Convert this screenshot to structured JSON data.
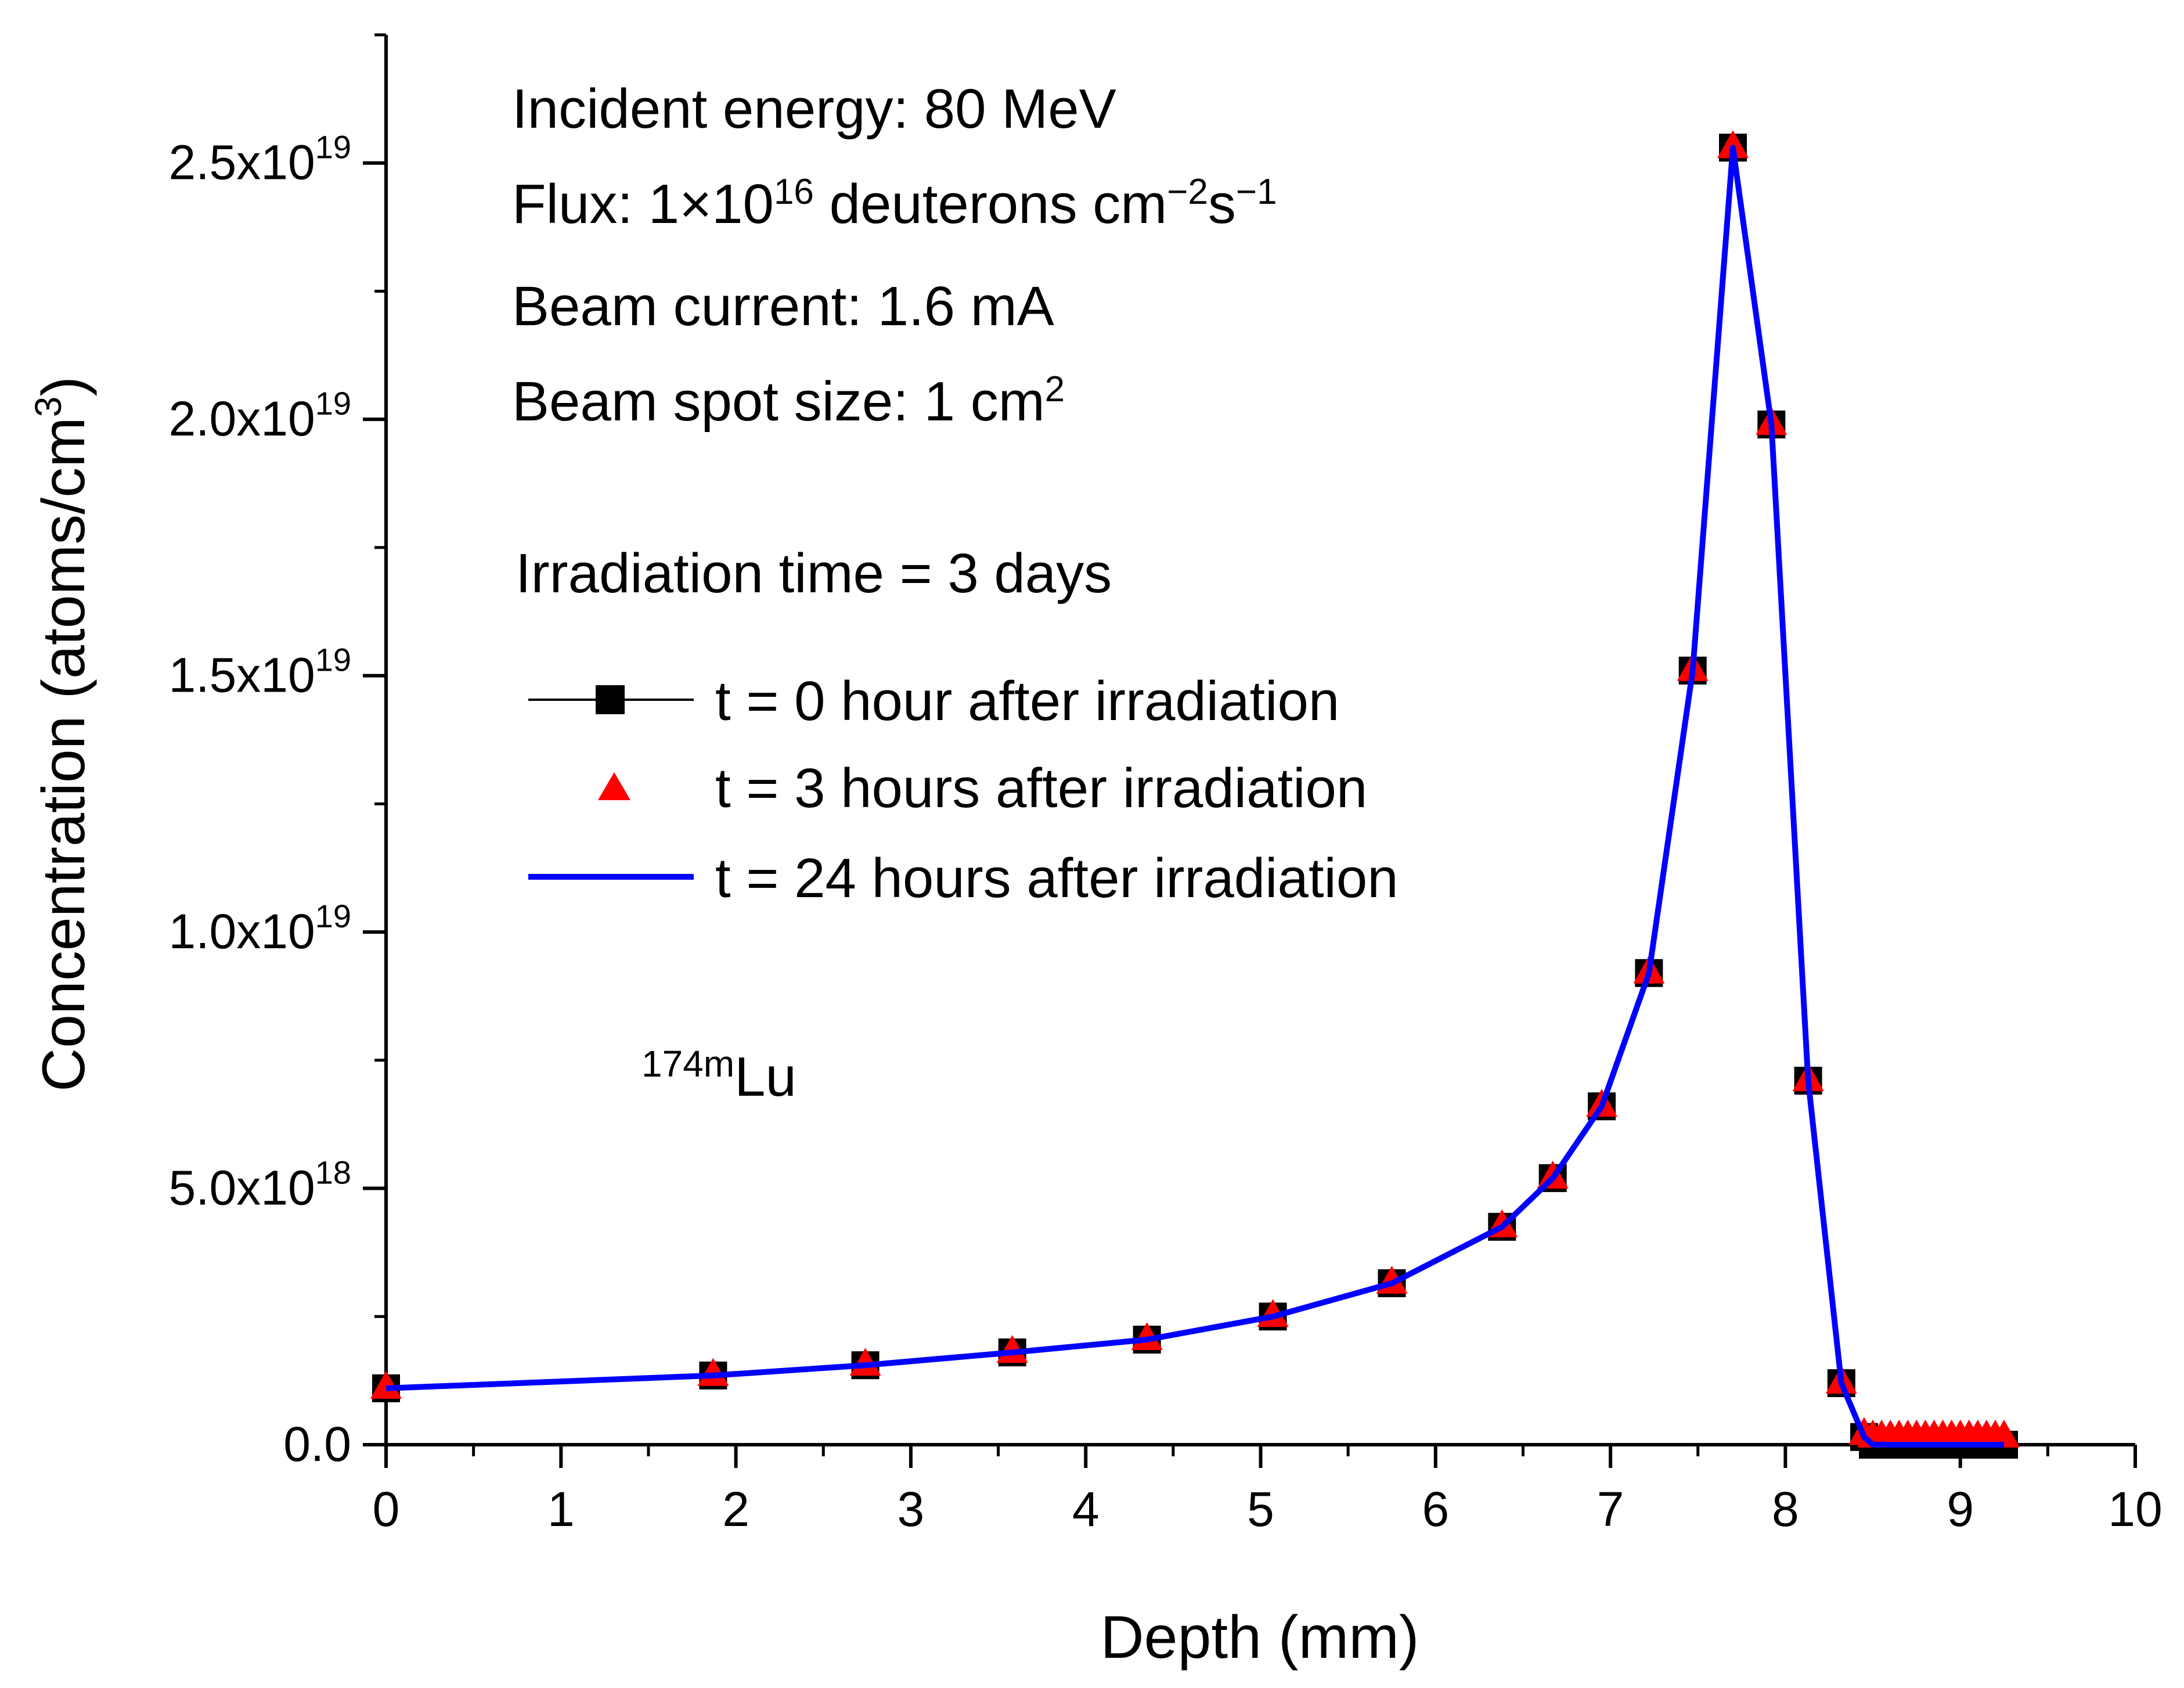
{
  "chart_data": {
    "type": "line",
    "xlabel": "Depth (mm)",
    "ylabel_main": "Concentration (atoms/cm",
    "ylabel_sup": "3",
    "ylabel_close": ")",
    "xlim": [
      0,
      10
    ],
    "ylim": [
      0,
      2.75e+19
    ],
    "x_ticks": [
      {
        "value": 0,
        "label": "0"
      },
      {
        "value": 1,
        "label": "1"
      },
      {
        "value": 2,
        "label": "2"
      },
      {
        "value": 3,
        "label": "3"
      },
      {
        "value": 4,
        "label": "4"
      },
      {
        "value": 5,
        "label": "5"
      },
      {
        "value": 6,
        "label": "6"
      },
      {
        "value": 7,
        "label": "7"
      },
      {
        "value": 8,
        "label": "8"
      },
      {
        "value": 9,
        "label": "9"
      },
      {
        "value": 10,
        "label": "10"
      }
    ],
    "y_ticks": [
      {
        "value": 0,
        "label": "0.0",
        "exp": ""
      },
      {
        "value": 5e+18,
        "label": "5.0x10",
        "exp": "18"
      },
      {
        "value": 1e+19,
        "label": "1.0x10",
        "exp": "19"
      },
      {
        "value": 1.5e+19,
        "label": "1.5x10",
        "exp": "19"
      },
      {
        "value": 2e+19,
        "label": "2.0x10",
        "exp": "19"
      },
      {
        "value": 2.5e+19,
        "label": "2.5x10",
        "exp": "19"
      }
    ],
    "x": [
      0,
      1.87,
      2.74,
      3.58,
      4.35,
      5.07,
      5.75,
      6.38,
      6.67,
      6.95,
      7.22,
      7.47,
      7.7,
      7.92,
      8.13,
      8.32,
      8.45,
      8.5,
      8.55,
      8.6,
      8.65,
      8.7,
      8.75,
      8.8,
      8.85,
      8.9,
      8.95,
      9.0,
      9.05,
      9.1,
      9.15,
      9.2,
      9.25
    ],
    "series": [
      {
        "name": "t = 0 hour after irradiation",
        "marker": "square",
        "line": true,
        "color": "#000000",
        "values": [
          1.1e+18,
          1.35e+18,
          1.55e+18,
          1.8e+18,
          2.05e+18,
          2.5e+18,
          3.15e+18,
          4.25e+18,
          5.2e+18,
          6.6e+18,
          9.2e+18,
          1.51e+19,
          2.53e+19,
          1.99e+19,
          7.1e+18,
          1.2e+18,
          1.5e+17,
          0,
          0,
          0,
          0,
          0,
          0,
          0,
          0,
          0,
          0,
          0,
          0,
          0,
          0,
          0,
          0
        ]
      },
      {
        "name": "t = 3 hours after irradiation",
        "marker": "triangle",
        "line": false,
        "color": "#ff0000",
        "values": [
          1.1e+18,
          1.35e+18,
          1.55e+18,
          1.8e+18,
          2.05e+18,
          2.5e+18,
          3.15e+18,
          4.25e+18,
          5.2e+18,
          6.6e+18,
          9.2e+18,
          1.51e+19,
          2.53e+19,
          1.99e+19,
          7.1e+18,
          1.2e+18,
          2e+17,
          1.5e+17,
          1.5e+17,
          1.5e+17,
          1.5e+17,
          1.5e+17,
          1.5e+17,
          1.5e+17,
          1.5e+17,
          1.5e+17,
          1.5e+17,
          1.5e+17,
          1.5e+17,
          1.5e+17,
          1.5e+17,
          1.5e+17,
          1.5e+17
        ]
      },
      {
        "name": "t = 24 hours after irradiation",
        "marker": "none",
        "line": true,
        "color": "#0000ff",
        "values": [
          1.1e+18,
          1.35e+18,
          1.55e+18,
          1.8e+18,
          2.05e+18,
          2.5e+18,
          3.15e+18,
          4.25e+18,
          5.2e+18,
          6.6e+18,
          9.2e+18,
          1.51e+19,
          2.53e+19,
          1.99e+19,
          7.1e+18,
          1.2e+18,
          1.5e+17,
          0,
          0,
          0,
          0,
          0,
          0,
          0,
          0,
          0,
          0,
          0,
          0,
          0,
          0,
          0,
          0
        ]
      }
    ],
    "legend_position": "upper-left"
  },
  "annotations": {
    "energy": "Incident energy: 80 MeV",
    "flux_prefix": "Flux: 1",
    "flux_times": "×",
    "flux_base": "10",
    "flux_exp": "16",
    "flux_unit": " deuterons cm",
    "flux_exp2": "−2",
    "flux_s": "s",
    "flux_exp3": "−1",
    "current": "Beam current: 1.6 mA",
    "spot_prefix": "Beam spot size: 1 cm",
    "spot_exp": "2",
    "irradiation": "Irradiation time = 3 days",
    "isotope_sup": "174m",
    "isotope": "Lu"
  }
}
